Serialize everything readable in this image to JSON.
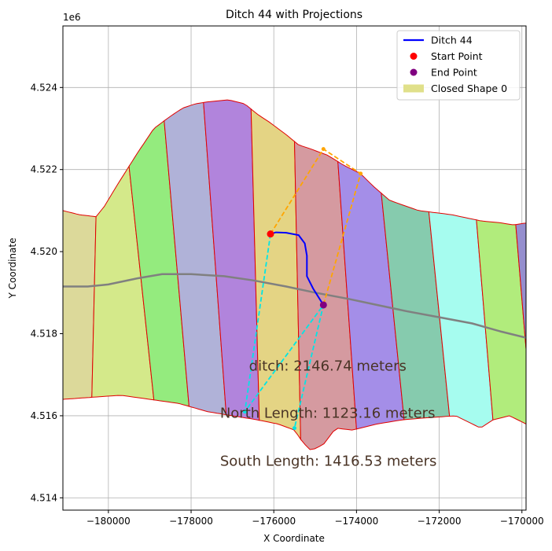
{
  "chart_data": {
    "type": "map",
    "title": "Ditch 44 with Projections",
    "xlabel": "X Coordinate",
    "ylabel": "Y Coordinate",
    "y_offset_label": "1e6",
    "xlim": [
      -181100,
      -169900
    ],
    "ylim": [
      4513700,
      4525500
    ],
    "xticks": [
      -180000,
      -178000,
      -176000,
      -174000,
      -172000,
      -170000
    ],
    "xtick_labels": [
      "−180000",
      "−178000",
      "−176000",
      "−174000",
      "−172000",
      "−170000"
    ],
    "yticks": [
      4514000,
      4516000,
      4518000,
      4520000,
      4522000,
      4524000
    ],
    "ytick_labels": [
      "4.514",
      "4.516",
      "4.518",
      "4.520",
      "4.522",
      "4.524"
    ],
    "grid": true,
    "legend_position": "top-right",
    "legend": [
      {
        "label": "Ditch 44",
        "kind": "line",
        "color": "#0000ff"
      },
      {
        "label": "Start Point",
        "kind": "dot",
        "color": "#ff0000"
      },
      {
        "label": "End Point",
        "kind": "dot",
        "color": "#800080"
      },
      {
        "label": "Closed Shape 0",
        "kind": "patch",
        "color": "#e0e08a"
      }
    ],
    "boundary_top": [
      [
        -181100,
        4521000
      ],
      [
        -180700,
        4520900
      ],
      [
        -180300,
        4520850
      ],
      [
        -180100,
        4521100
      ],
      [
        -179800,
        4521600
      ],
      [
        -179300,
        4522400
      ],
      [
        -178900,
        4523000
      ],
      [
        -178500,
        4523300
      ],
      [
        -178200,
        4523500
      ],
      [
        -177900,
        4523600
      ],
      [
        -177600,
        4523650
      ],
      [
        -177100,
        4523700
      ],
      [
        -176700,
        4523600
      ],
      [
        -176400,
        4523350
      ],
      [
        -176100,
        4523150
      ],
      [
        -175700,
        4522850
      ],
      [
        -175400,
        4522600
      ],
      [
        -175100,
        4522500
      ],
      [
        -174700,
        4522350
      ],
      [
        -174300,
        4522100
      ],
      [
        -173900,
        4521900
      ],
      [
        -173600,
        4521600
      ],
      [
        -173200,
        4521250
      ],
      [
        -172500,
        4521000
      ],
      [
        -171700,
        4520900
      ],
      [
        -171000,
        4520750
      ],
      [
        -170500,
        4520700
      ],
      [
        -170200,
        4520650
      ],
      [
        -169900,
        4520700
      ]
    ],
    "boundary_bottom": [
      [
        -181100,
        4516400
      ],
      [
        -180400,
        4516450
      ],
      [
        -179700,
        4516500
      ],
      [
        -179000,
        4516400
      ],
      [
        -178300,
        4516300
      ],
      [
        -177600,
        4516100
      ],
      [
        -177000,
        4516000
      ],
      [
        -176400,
        4515900
      ],
      [
        -175900,
        4515800
      ],
      [
        -175500,
        4515650
      ],
      [
        -175300,
        4515350
      ],
      [
        -175100,
        4515150
      ],
      [
        -174800,
        4515300
      ],
      [
        -174500,
        4515700
      ],
      [
        -174100,
        4515650
      ],
      [
        -173500,
        4515800
      ],
      [
        -172900,
        4515900
      ],
      [
        -172300,
        4515950
      ],
      [
        -171600,
        4516000
      ],
      [
        -171000,
        4515700
      ],
      [
        -170700,
        4515900
      ],
      [
        -170300,
        4516000
      ],
      [
        -169900,
        4515800
      ]
    ],
    "strips": [
      {
        "color": "#dcd99a",
        "top_x": -181100,
        "bottom_x": -181100
      },
      {
        "color": "#d4e98a",
        "top_x": -180300,
        "bottom_x": -180400
      },
      {
        "color": "#94eb7e",
        "top_x": -179500,
        "bottom_x": -178900
      },
      {
        "color": "#b0b2d8",
        "top_x": -178650,
        "bottom_x": -178050
      },
      {
        "color": "#b184dc",
        "top_x": -177700,
        "bottom_x": -177150
      },
      {
        "color": "#e4d484",
        "top_x": -176550,
        "bottom_x": -176350
      },
      {
        "color": "#d59aa0",
        "top_x": -175500,
        "bottom_x": -175350
      },
      {
        "color": "#a48ee8",
        "top_x": -174450,
        "bottom_x": -174000
      },
      {
        "color": "#86cbae",
        "top_x": -173400,
        "bottom_x": -172850
      },
      {
        "color": "#a6fcef",
        "top_x": -172250,
        "bottom_x": -171750
      },
      {
        "color": "#b1ec7c",
        "top_x": -171100,
        "bottom_x": -170700
      },
      {
        "color": "#958ece",
        "top_x": -170150,
        "bottom_x": -169750
      }
    ],
    "road": [
      [
        -181100,
        4519150
      ],
      [
        -180500,
        4519150
      ],
      [
        -180000,
        4519200
      ],
      [
        -179300,
        4519350
      ],
      [
        -178700,
        4519450
      ],
      [
        -178000,
        4519450
      ],
      [
        -177200,
        4519400
      ],
      [
        -176500,
        4519300
      ],
      [
        -175700,
        4519150
      ],
      [
        -175000,
        4519000
      ],
      [
        -174200,
        4518850
      ],
      [
        -173500,
        4518700
      ],
      [
        -172800,
        4518550
      ],
      [
        -172000,
        4518400
      ],
      [
        -171200,
        4518250
      ],
      [
        -170500,
        4518050
      ],
      [
        -169900,
        4517900
      ]
    ],
    "ditch": [
      [
        -176080,
        4520430
      ],
      [
        -175950,
        4520470
      ],
      [
        -175700,
        4520460
      ],
      [
        -175400,
        4520400
      ],
      [
        -175250,
        4520200
      ],
      [
        -175200,
        4519900
      ],
      [
        -175200,
        4519400
      ],
      [
        -175050,
        4519100
      ],
      [
        -174800,
        4518700
      ]
    ],
    "start_point": [
      -176080,
      4520430
    ],
    "end_point": [
      -174800,
      4518700
    ],
    "north_projection": {
      "color": "#ffa500",
      "points": [
        [
          -176080,
          4520430
        ],
        [
          -174800,
          4522500
        ],
        [
          -173900,
          4521900
        ],
        [
          -174800,
          4518700
        ]
      ]
    },
    "south_projection": {
      "color": "#00e5e5",
      "points": [
        [
          -176080,
          4520430
        ],
        [
          -176700,
          4516100
        ],
        [
          -174800,
          4518700
        ],
        [
          -175500,
          4515700
        ]
      ]
    },
    "annotations": [
      {
        "text": "ditch: 2146.74 meters",
        "x": -176600,
        "y": 4517100
      },
      {
        "text": "North Length: 1123.16 meters",
        "x": -177300,
        "y": 4515950
      },
      {
        "text": "South Length: 1416.53 meters",
        "x": -177300,
        "y": 4514780
      }
    ]
  }
}
